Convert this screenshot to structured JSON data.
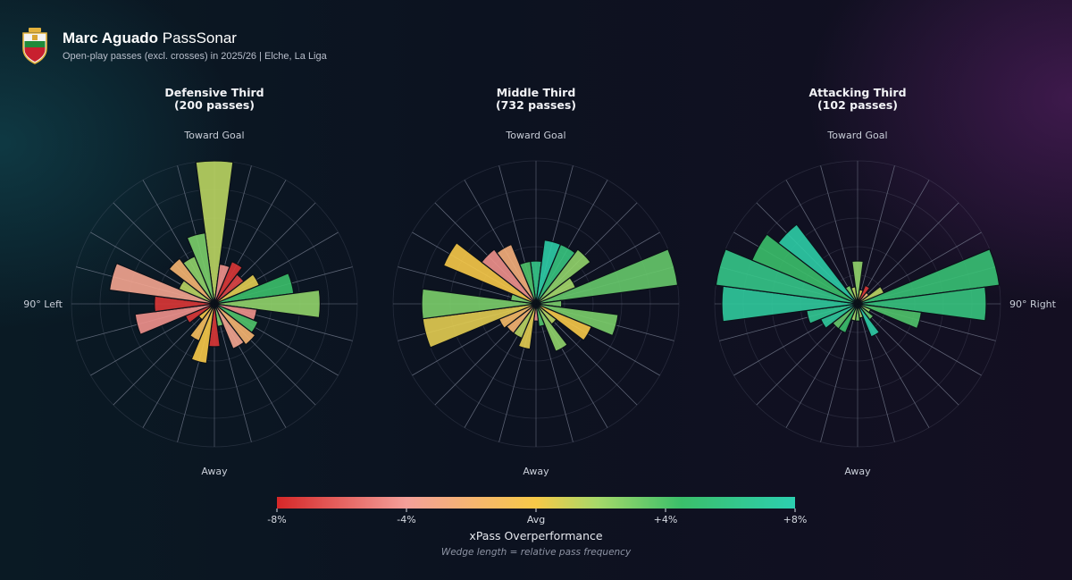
{
  "header": {
    "player": "Marc Aguado",
    "viz_name": "PassSonar",
    "subtitle": "Open-play passes (excl. crosses) in 2025/26 | Elche, La Liga",
    "crest_icon": "elche-crest-icon"
  },
  "direction_labels": {
    "top": "Toward Goal",
    "bottom": "Away",
    "left": "90° Left",
    "right": "90° Right"
  },
  "colorbar": {
    "ticks": [
      "-8%",
      "-4%",
      "Avg",
      "+4%",
      "+8%"
    ],
    "tick_values": [
      -8,
      -4,
      0,
      4,
      8
    ],
    "title": "xPass Overperformance",
    "note": "Wedge length = relative pass frequency",
    "colors": [
      "#d62728",
      "#f4a09a",
      "#f7c948",
      "#a6d96a",
      "#3bbf6a",
      "#2ccfb0"
    ]
  },
  "chart_data": [
    {
      "type": "polar-bar",
      "title_line1": "Defensive Third",
      "title_line2": "(200 passes)",
      "bin_width_deg": 15,
      "angle_convention": "0 = toward goal, positive = clockwise toward right",
      "wedges": [
        {
          "angle": 0,
          "length": 1.0,
          "xpass": 1.5
        },
        {
          "angle": 15,
          "length": 0.28,
          "xpass": -4.5
        },
        {
          "angle": 30,
          "length": 0.32,
          "xpass": -7.5
        },
        {
          "angle": 45,
          "length": 0.26,
          "xpass": -7.0
        },
        {
          "angle": 60,
          "length": 0.34,
          "xpass": 0.5
        },
        {
          "angle": 75,
          "length": 0.56,
          "xpass": 4.5
        },
        {
          "angle": 90,
          "length": 0.74,
          "xpass": 2.5
        },
        {
          "angle": 105,
          "length": 0.3,
          "xpass": -4.5
        },
        {
          "angle": 120,
          "length": 0.33,
          "xpass": 4.0
        },
        {
          "angle": 135,
          "length": 0.36,
          "xpass": -2.0
        },
        {
          "angle": 150,
          "length": 0.34,
          "xpass": -3.5
        },
        {
          "angle": 165,
          "length": 0.16,
          "xpass": 3.0
        },
        {
          "angle": 180,
          "length": 0.3,
          "xpass": -7.5
        },
        {
          "angle": 195,
          "length": 0.42,
          "xpass": 0.0
        },
        {
          "angle": 210,
          "length": 0.28,
          "xpass": -1.0
        },
        {
          "angle": 225,
          "length": 0.14,
          "xpass": 0.0
        },
        {
          "angle": 240,
          "length": 0.22,
          "xpass": -7.5
        },
        {
          "angle": 255,
          "length": 0.56,
          "xpass": -4.5
        },
        {
          "angle": 270,
          "length": 0.42,
          "xpass": -7.5
        },
        {
          "angle": 285,
          "length": 0.74,
          "xpass": -3.5
        },
        {
          "angle": 300,
          "length": 0.27,
          "xpass": 1.5
        },
        {
          "angle": 315,
          "length": 0.4,
          "xpass": -2.0
        },
        {
          "angle": 330,
          "length": 0.36,
          "xpass": 2.5
        },
        {
          "angle": 345,
          "length": 0.5,
          "xpass": 3.0
        }
      ]
    },
    {
      "type": "polar-bar",
      "title_line1": "Middle Third",
      "title_line2": "(732 passes)",
      "bin_width_deg": 15,
      "angle_convention": "0 = toward goal, positive = clockwise toward right",
      "wedges": [
        {
          "angle": 0,
          "length": 0.3,
          "xpass": 6.0
        },
        {
          "angle": 15,
          "length": 0.45,
          "xpass": 7.5
        },
        {
          "angle": 30,
          "length": 0.45,
          "xpass": 5.5
        },
        {
          "angle": 45,
          "length": 0.48,
          "xpass": 2.5
        },
        {
          "angle": 60,
          "length": 0.3,
          "xpass": 2.0
        },
        {
          "angle": 75,
          "length": 1.0,
          "xpass": 3.5
        },
        {
          "angle": 90,
          "length": 0.18,
          "xpass": 3.0
        },
        {
          "angle": 105,
          "length": 0.58,
          "xpass": 3.0
        },
        {
          "angle": 120,
          "length": 0.42,
          "xpass": 0.0
        },
        {
          "angle": 135,
          "length": 0.18,
          "xpass": 1.5
        },
        {
          "angle": 150,
          "length": 0.36,
          "xpass": 2.5
        },
        {
          "angle": 165,
          "length": 0.16,
          "xpass": 4.0
        },
        {
          "angle": 180,
          "length": 0.12,
          "xpass": -4.5
        },
        {
          "angle": 195,
          "length": 0.32,
          "xpass": 0.5
        },
        {
          "angle": 210,
          "length": 0.26,
          "xpass": 1.5
        },
        {
          "angle": 225,
          "length": 0.26,
          "xpass": -2.0
        },
        {
          "angle": 240,
          "length": 0.28,
          "xpass": -1.5
        },
        {
          "angle": 255,
          "length": 0.8,
          "xpass": 0.5
        },
        {
          "angle": 270,
          "length": 0.8,
          "xpass": 3.0
        },
        {
          "angle": 285,
          "length": 0.18,
          "xpass": 3.0
        },
        {
          "angle": 300,
          "length": 0.7,
          "xpass": 0.0
        },
        {
          "angle": 315,
          "length": 0.48,
          "xpass": -4.5
        },
        {
          "angle": 330,
          "length": 0.45,
          "xpass": -2.5
        },
        {
          "angle": 345,
          "length": 0.3,
          "xpass": 4.0
        }
      ]
    },
    {
      "type": "polar-bar",
      "title_line1": "Attacking Third",
      "title_line2": "(102 passes)",
      "bin_width_deg": 15,
      "angle_convention": "0 = toward goal, positive = clockwise toward right",
      "wedges": [
        {
          "angle": 0,
          "length": 0.3,
          "xpass": 2.5
        },
        {
          "angle": 15,
          "length": 0.1,
          "xpass": 0.5
        },
        {
          "angle": 30,
          "length": 0.14,
          "xpass": -7.5
        },
        {
          "angle": 45,
          "length": 0.1,
          "xpass": -2.0
        },
        {
          "angle": 60,
          "length": 0.2,
          "xpass": 1.5
        },
        {
          "angle": 75,
          "length": 1.0,
          "xpass": 5.0
        },
        {
          "angle": 90,
          "length": 0.9,
          "xpass": 5.5
        },
        {
          "angle": 105,
          "length": 0.45,
          "xpass": 4.0
        },
        {
          "angle": 120,
          "length": 0.1,
          "xpass": 2.0
        },
        {
          "angle": 135,
          "length": 0.14,
          "xpass": 3.5
        },
        {
          "angle": 150,
          "length": 0.25,
          "xpass": 7.5
        },
        {
          "angle": 165,
          "length": 0.1,
          "xpass": 2.0
        },
        {
          "angle": 180,
          "length": 0.12,
          "xpass": 3.0
        },
        {
          "angle": 195,
          "length": 0.12,
          "xpass": 2.0
        },
        {
          "angle": 210,
          "length": 0.22,
          "xpass": 4.5
        },
        {
          "angle": 225,
          "length": 0.22,
          "xpass": 3.5
        },
        {
          "angle": 240,
          "length": 0.28,
          "xpass": 7.0
        },
        {
          "angle": 255,
          "length": 0.36,
          "xpass": 6.5
        },
        {
          "angle": 270,
          "length": 0.95,
          "xpass": 7.0
        },
        {
          "angle": 285,
          "length": 1.0,
          "xpass": 6.0
        },
        {
          "angle": 300,
          "length": 0.8,
          "xpass": 4.5
        },
        {
          "angle": 315,
          "length": 0.7,
          "xpass": 7.5
        },
        {
          "angle": 330,
          "length": 0.14,
          "xpass": 3.0
        },
        {
          "angle": 345,
          "length": 0.12,
          "xpass": 1.5
        }
      ]
    }
  ]
}
